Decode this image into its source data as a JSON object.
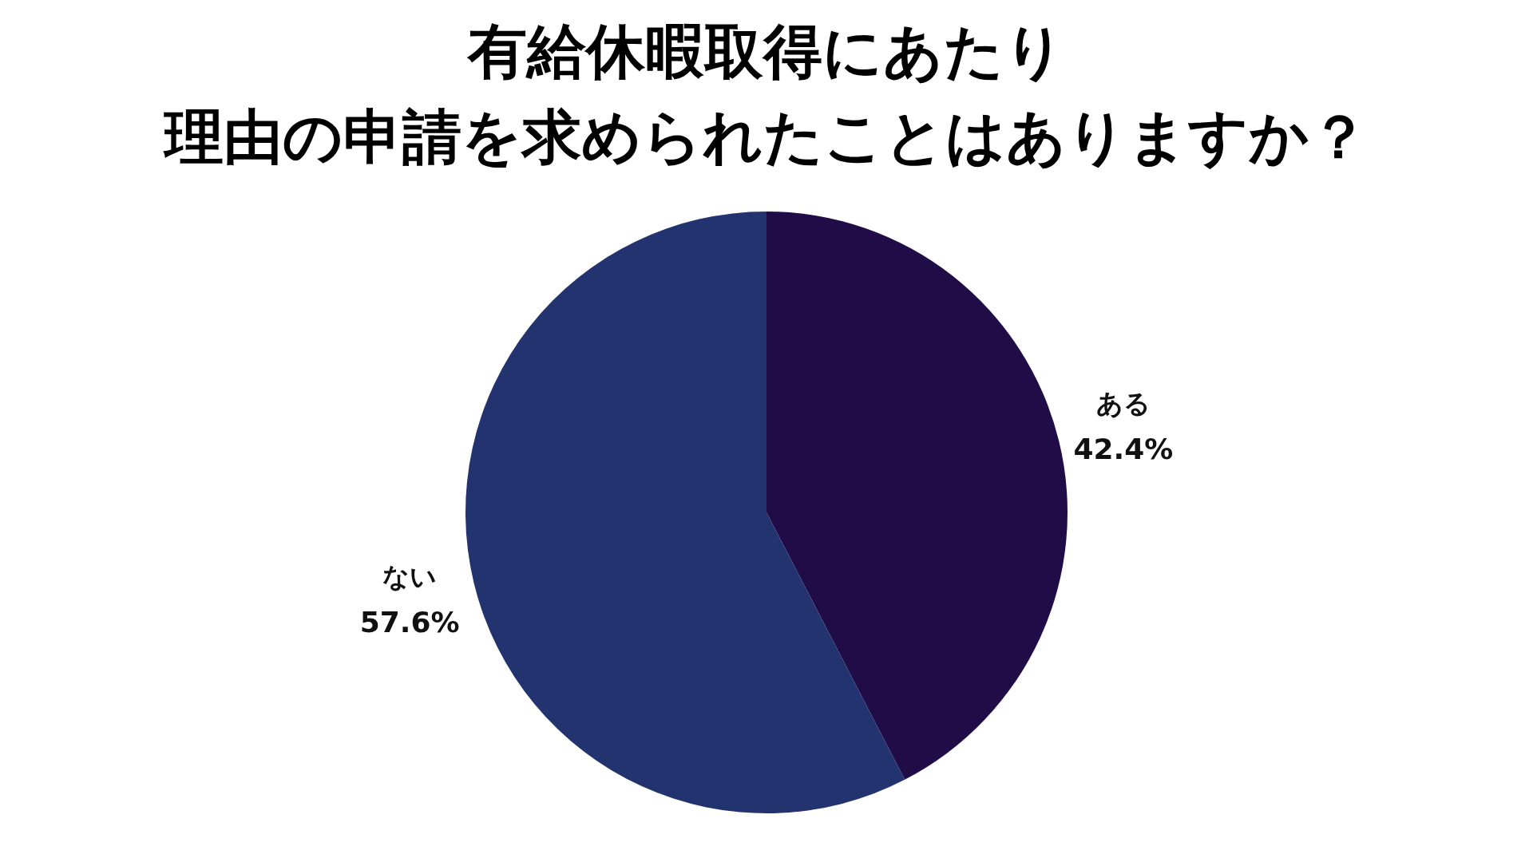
{
  "chart_data": {
    "type": "pie",
    "title": "有給休暇取得にあたり",
    "subtitle": "理由の申請を求められたことはありますか？",
    "categories": [
      "ある",
      "ない"
    ],
    "values": [
      42.4,
      57.6
    ],
    "colors": [
      "#200d47",
      "#23336f"
    ],
    "value_labels": [
      "42.4%",
      "57.6%"
    ]
  }
}
